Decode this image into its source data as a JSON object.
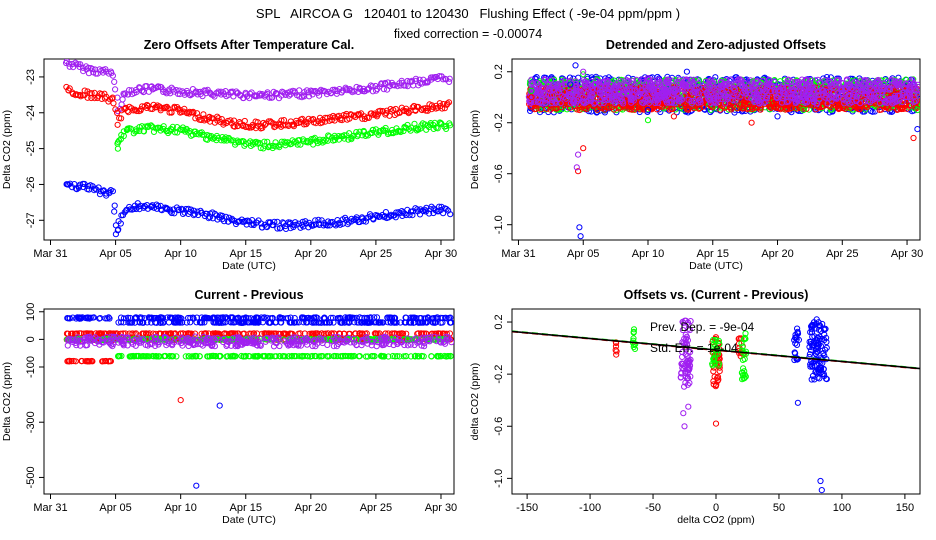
{
  "header": {
    "title": "SPL   AIRCOA G   120401 to 120430   Flushing Effect ( -9e-04 ppm/ppm )",
    "subtitle": "fixed correction = -0.00074"
  },
  "colors": {
    "purple": "#a020f0",
    "red": "#ff0000",
    "green": "#00ff00",
    "blue": "#0000ff",
    "black": "#000000",
    "frame": "#000000"
  },
  "chart_data": [
    {
      "id": "zero-offsets",
      "type": "scatter",
      "title": "Zero Offsets After Temperature Cal.",
      "xlabel": "Date (UTC)",
      "ylabel": "Delta CO2 (ppm)",
      "xlim": [
        -0.5,
        31
      ],
      "ylim": [
        -27.55,
        -22.5
      ],
      "xticks": [
        0,
        5,
        10,
        15,
        20,
        25,
        30
      ],
      "xtick_labels": [
        "Mar 31",
        "Apr 05",
        "Apr 10",
        "Apr 15",
        "Apr 20",
        "Apr 25",
        "Apr 30"
      ],
      "yticks": [
        -27,
        -26,
        -25,
        -24,
        -23
      ],
      "ytick_labels": [
        "-27",
        "-26",
        "-25",
        "-24",
        "-23"
      ],
      "series": [
        {
          "name": "purple",
          "color": "purple",
          "points": [
            [
              1.2,
              -22.6
            ],
            [
              2,
              -22.7
            ],
            [
              3,
              -22.8
            ],
            [
              4,
              -22.85
            ],
            [
              4.8,
              -22.9
            ],
            [
              5.2,
              -23.9
            ],
            [
              5.5,
              -23.6
            ],
            [
              6,
              -23.4
            ],
            [
              7,
              -23.35
            ],
            [
              8,
              -23.35
            ],
            [
              10,
              -23.4
            ],
            [
              12,
              -23.45
            ],
            [
              14,
              -23.5
            ],
            [
              16,
              -23.5
            ],
            [
              18,
              -23.5
            ],
            [
              20,
              -23.45
            ],
            [
              22,
              -23.4
            ],
            [
              24,
              -23.35
            ],
            [
              26,
              -23.25
            ],
            [
              28,
              -23.15
            ],
            [
              30,
              -23.05
            ],
            [
              30.8,
              -23.05
            ]
          ]
        },
        {
          "name": "red",
          "color": "red",
          "points": [
            [
              1.2,
              -23.35
            ],
            [
              2,
              -23.45
            ],
            [
              3,
              -23.5
            ],
            [
              4,
              -23.55
            ],
            [
              4.8,
              -23.65
            ],
            [
              5.2,
              -24.25
            ],
            [
              5.5,
              -24.0
            ],
            [
              6,
              -23.9
            ],
            [
              7,
              -23.85
            ],
            [
              8,
              -23.85
            ],
            [
              10,
              -23.95
            ],
            [
              12,
              -24.15
            ],
            [
              14,
              -24.3
            ],
            [
              16,
              -24.35
            ],
            [
              18,
              -24.3
            ],
            [
              20,
              -24.25
            ],
            [
              22,
              -24.15
            ],
            [
              24,
              -24.1
            ],
            [
              26,
              -24.0
            ],
            [
              28,
              -23.9
            ],
            [
              30,
              -23.8
            ],
            [
              30.8,
              -23.8
            ]
          ]
        },
        {
          "name": "green",
          "color": "green",
          "points": [
            [
              5.1,
              -25.0
            ],
            [
              5.3,
              -24.75
            ],
            [
              5.6,
              -24.6
            ],
            [
              6,
              -24.5
            ],
            [
              7,
              -24.45
            ],
            [
              8,
              -24.45
            ],
            [
              10,
              -24.5
            ],
            [
              12,
              -24.65
            ],
            [
              14,
              -24.8
            ],
            [
              16,
              -24.9
            ],
            [
              18,
              -24.9
            ],
            [
              20,
              -24.8
            ],
            [
              22,
              -24.7
            ],
            [
              24,
              -24.6
            ],
            [
              26,
              -24.5
            ],
            [
              28,
              -24.4
            ],
            [
              30,
              -24.35
            ],
            [
              30.8,
              -24.4
            ]
          ]
        },
        {
          "name": "blue",
          "color": "blue",
          "points": [
            [
              1.2,
              -25.95
            ],
            [
              2,
              -26.05
            ],
            [
              3,
              -26.1
            ],
            [
              4,
              -26.2
            ],
            [
              4.8,
              -26.25
            ],
            [
              5.1,
              -27.45
            ],
            [
              5.3,
              -27.1
            ],
            [
              5.6,
              -26.8
            ],
            [
              6,
              -26.65
            ],
            [
              7,
              -26.6
            ],
            [
              8,
              -26.65
            ],
            [
              10,
              -26.75
            ],
            [
              12,
              -26.85
            ],
            [
              14,
              -27.0
            ],
            [
              16,
              -27.1
            ],
            [
              18,
              -27.15
            ],
            [
              20,
              -27.1
            ],
            [
              22,
              -27.05
            ],
            [
              24,
              -26.95
            ],
            [
              26,
              -26.85
            ],
            [
              28,
              -26.75
            ],
            [
              30,
              -26.7
            ],
            [
              30.8,
              -26.75
            ]
          ]
        }
      ]
    },
    {
      "id": "detrended",
      "type": "scatter",
      "title": "Detrended and Zero-adjusted Offsets",
      "xlabel": "Date (UTC)",
      "ylabel": "Delta CO2 (ppm)",
      "xlim": [
        -0.5,
        31
      ],
      "ylim": [
        -1.12,
        0.3
      ],
      "xticks": [
        0,
        5,
        10,
        15,
        20,
        25,
        30
      ],
      "xtick_labels": [
        "Mar 31",
        "Apr 05",
        "Apr 10",
        "Apr 15",
        "Apr 20",
        "Apr 25",
        "Apr 30"
      ],
      "yticks": [
        -1.0,
        -0.6,
        -0.2,
        0.2
      ],
      "ytick_labels": [
        "-1.0",
        "-0.6",
        "-0.2",
        "0.2"
      ],
      "series": [
        {
          "name": "blue",
          "color": "blue",
          "points": [
            [
              1,
              0.05
            ],
            [
              4,
              0.1
            ],
            [
              4.4,
              0.25
            ],
            [
              4.7,
              -1.02
            ],
            [
              4.8,
              -1.09
            ],
            [
              10,
              -0.1
            ],
            [
              13,
              0.2
            ],
            [
              20,
              -0.15
            ],
            [
              30.8,
              -0.25
            ]
          ]
        },
        {
          "name": "red",
          "color": "red",
          "points": [
            [
              1,
              0.0
            ],
            [
              4.6,
              -0.58
            ],
            [
              5,
              -0.4
            ],
            [
              12,
              -0.15
            ],
            [
              18,
              -0.2
            ],
            [
              30.5,
              -0.32
            ]
          ]
        },
        {
          "name": "green",
          "color": "green",
          "points": [
            [
              1,
              0.05
            ],
            [
              5,
              0.18
            ],
            [
              10,
              -0.18
            ],
            [
              22,
              -0.1
            ],
            [
              30.8,
              -0.1
            ]
          ]
        },
        {
          "name": "purple",
          "color": "purple",
          "points": [
            [
              1,
              0.1
            ],
            [
              4.5,
              -0.55
            ],
            [
              4.6,
              -0.45
            ],
            [
              5,
              0.2
            ],
            [
              10,
              0.15
            ],
            [
              30.5,
              0.1
            ]
          ]
        }
      ],
      "bands": [
        {
          "color": "blue",
          "x": [
            0.8,
            30.9
          ],
          "y": [
            -0.12,
            0.16
          ]
        },
        {
          "color": "green",
          "x": [
            0.8,
            30.9
          ],
          "y": [
            -0.1,
            0.14
          ]
        },
        {
          "color": "red",
          "x": [
            0.8,
            30.9
          ],
          "y": [
            -0.1,
            0.08
          ]
        },
        {
          "color": "purple",
          "x": [
            0.8,
            30.9
          ],
          "y": [
            -0.05,
            0.14
          ]
        }
      ]
    },
    {
      "id": "current-previous",
      "type": "scatter",
      "title": "Current - Previous",
      "xlabel": "Date (UTC)",
      "ylabel": "Delta CO2 (ppm)",
      "xlim": [
        -0.5,
        31
      ],
      "ylim": [
        -560,
        110
      ],
      "xticks": [
        0,
        5,
        10,
        15,
        20,
        25,
        30
      ],
      "xtick_labels": [
        "Mar 31",
        "Apr 05",
        "Apr 10",
        "Apr 15",
        "Apr 20",
        "Apr 25",
        "Apr 30"
      ],
      "yticks": [
        -500,
        -300,
        -100,
        0,
        100
      ],
      "ytick_labels": [
        "-500",
        "-300",
        "-100",
        "0",
        "100"
      ],
      "bands": [
        {
          "color": "blue",
          "x": [
            1.2,
            30.8
          ],
          "y": [
            75,
            80
          ]
        },
        {
          "color": "blue",
          "x": [
            5,
            30.8
          ],
          "y": [
            60,
            62
          ]
        },
        {
          "color": "red",
          "x": [
            1.2,
            30.8
          ],
          "y": [
            20,
            22
          ]
        },
        {
          "color": "red",
          "x": [
            1.2,
            30.8
          ],
          "y": [
            -2,
            2
          ]
        },
        {
          "color": "red",
          "x": [
            1.2,
            4.8
          ],
          "y": [
            -80,
            -78
          ]
        },
        {
          "color": "green",
          "x": [
            5,
            30.8
          ],
          "y": [
            -62,
            -60
          ]
        },
        {
          "color": "green",
          "x": [
            1.2,
            30.8
          ],
          "y": [
            -2,
            2
          ]
        },
        {
          "color": "purple",
          "x": [
            1.2,
            30.8
          ],
          "y": [
            -25,
            10
          ]
        }
      ],
      "series": [
        {
          "name": "red",
          "color": "red",
          "points": [
            [
              10,
              -220
            ]
          ]
        },
        {
          "name": "blue",
          "color": "blue",
          "points": [
            [
              11.2,
              -530
            ],
            [
              13,
              -240
            ]
          ]
        }
      ]
    },
    {
      "id": "offsets-vs",
      "type": "scatter",
      "title": "Offsets vs. (Current - Previous)",
      "xlabel": "delta CO2 (ppm)",
      "ylabel": "delta CO2 (ppm)",
      "xlim": [
        -162,
        162
      ],
      "ylim": [
        -1.12,
        0.3
      ],
      "xticks": [
        -150,
        -100,
        -50,
        0,
        50,
        100,
        150
      ],
      "xtick_labels": [
        "-150",
        "-100",
        "-50",
        "0",
        "50",
        "100",
        "150"
      ],
      "yticks": [
        -1.0,
        -0.6,
        -0.2,
        0.2
      ],
      "ytick_labels": [
        "-1.0",
        "-0.6",
        "-0.2",
        "0.2"
      ],
      "legend": [
        "Prev. Dep. =  -9e-04",
        "Std. Err. = 1e-04"
      ],
      "fit_lines": [
        {
          "color": "green",
          "x": [
            -162,
            162
          ],
          "y": [
            0.131,
            -0.154
          ],
          "dash": true
        },
        {
          "color": "red",
          "x": [
            -162,
            162
          ],
          "y": [
            0.125,
            -0.16
          ],
          "dash": true
        },
        {
          "color": "black",
          "x": [
            -162,
            162
          ],
          "y": [
            0.128,
            -0.157
          ],
          "dash": false
        }
      ],
      "bands": [
        {
          "color": "red",
          "x": [
            -80,
            -78
          ],
          "y": [
            -0.07,
            0.05
          ]
        },
        {
          "color": "green",
          "x": [
            -66,
            -64
          ],
          "y": [
            -0.12,
            0.18
          ]
        },
        {
          "color": "purple",
          "x": [
            -28,
            -20
          ],
          "y": [
            -0.3,
            0.22
          ]
        },
        {
          "color": "red",
          "x": [
            -3,
            3
          ],
          "y": [
            -0.3,
            0.1
          ]
        },
        {
          "color": "green",
          "x": [
            -3,
            3
          ],
          "y": [
            -0.15,
            0.08
          ]
        },
        {
          "color": "red",
          "x": [
            18,
            22
          ],
          "y": [
            -0.1,
            0.1
          ]
        },
        {
          "color": "green",
          "x": [
            20,
            24
          ],
          "y": [
            -0.25,
            0.12
          ]
        },
        {
          "color": "blue",
          "x": [
            62,
            66
          ],
          "y": [
            -0.15,
            0.15
          ]
        },
        {
          "color": "blue",
          "x": [
            74,
            88
          ],
          "y": [
            -0.25,
            0.2
          ]
        }
      ],
      "series": [
        {
          "name": "purple",
          "color": "purple",
          "points": [
            [
              -25,
              -0.6
            ],
            [
              -26,
              -0.5
            ],
            [
              -22,
              -0.45
            ]
          ]
        },
        {
          "name": "red",
          "color": "red",
          "points": [
            [
              0,
              -0.58
            ]
          ]
        },
        {
          "name": "blue",
          "color": "blue",
          "points": [
            [
              65,
              -0.42
            ],
            [
              83,
              -1.02
            ],
            [
              84,
              -1.09
            ],
            [
              80,
              0.22
            ]
          ]
        }
      ]
    }
  ]
}
